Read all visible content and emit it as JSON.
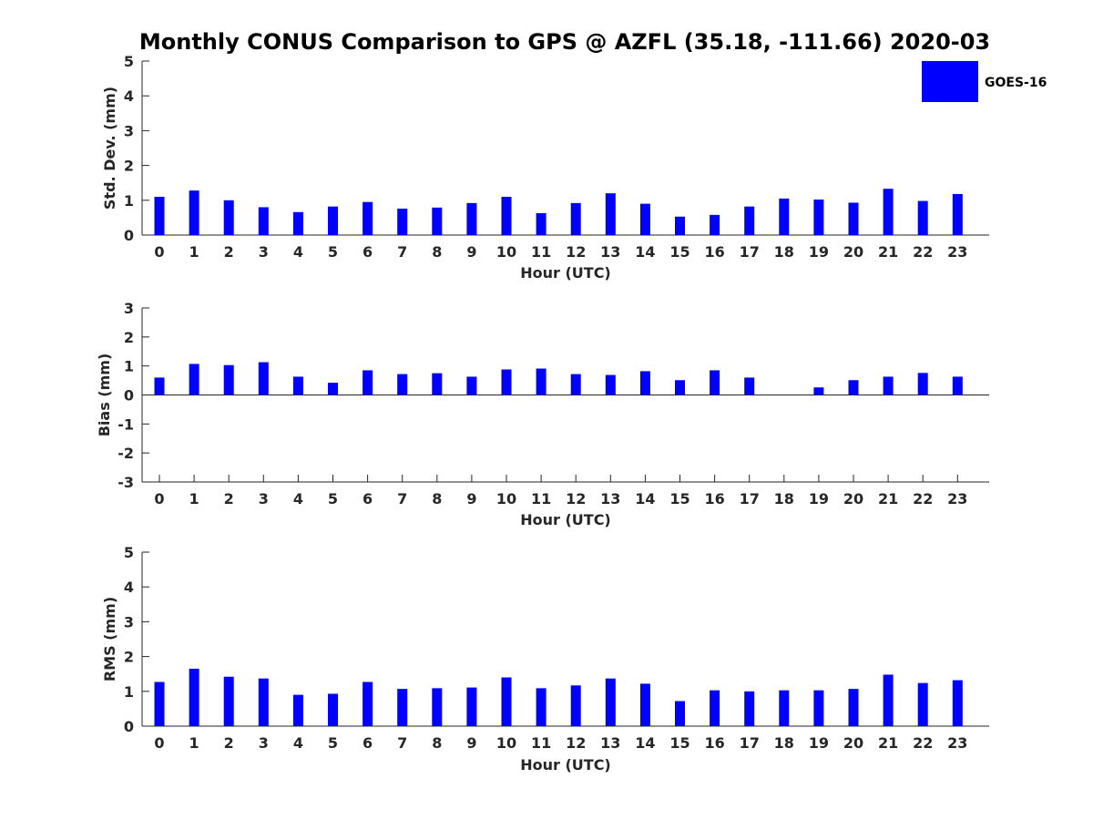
{
  "figure": {
    "title": "Monthly CONUS Comparison to GPS @ AZFL (35.18, -111.66) 2020-03",
    "legend": {
      "label": "GOES-16",
      "color": "#0000ff"
    }
  },
  "chart_data": [
    {
      "type": "bar",
      "title": "Monthly CONUS Comparison to GPS @ AZFL (35.18, -111.66) 2020-03",
      "xlabel": "Hour (UTC)",
      "ylabel": "Std. Dev. (mm)",
      "ylim": [
        0,
        5
      ],
      "yticks": [
        0,
        1,
        2,
        3,
        4,
        5
      ],
      "categories": [
        "0",
        "1",
        "2",
        "3",
        "4",
        "5",
        "6",
        "7",
        "8",
        "9",
        "10",
        "11",
        "12",
        "13",
        "14",
        "15",
        "16",
        "17",
        "18",
        "19",
        "20",
        "21",
        "22",
        "23"
      ],
      "series": [
        {
          "name": "GOES-16",
          "color": "#0000ff",
          "values": [
            1.1,
            1.28,
            1.0,
            0.8,
            0.66,
            0.82,
            0.95,
            0.76,
            0.79,
            0.92,
            1.1,
            0.63,
            0.92,
            1.2,
            0.9,
            0.53,
            0.58,
            0.82,
            1.05,
            1.02,
            0.93,
            1.33,
            0.98,
            1.18
          ]
        }
      ],
      "legend": "top-right",
      "grid": false
    },
    {
      "type": "bar",
      "xlabel": "Hour (UTC)",
      "ylabel": "Bias (mm)",
      "ylim": [
        -3,
        3
      ],
      "yticks": [
        -3,
        -2,
        -1,
        0,
        1,
        2,
        3
      ],
      "categories": [
        "0",
        "1",
        "2",
        "3",
        "4",
        "5",
        "6",
        "7",
        "8",
        "9",
        "10",
        "11",
        "12",
        "13",
        "14",
        "15",
        "16",
        "17",
        "18",
        "19",
        "20",
        "21",
        "22",
        "23"
      ],
      "series": [
        {
          "name": "GOES-16",
          "color": "#0000ff",
          "values": [
            0.6,
            1.07,
            1.03,
            1.13,
            0.63,
            0.42,
            0.85,
            0.72,
            0.75,
            0.63,
            0.88,
            0.91,
            0.72,
            0.69,
            0.82,
            0.51,
            0.85,
            0.6,
            0,
            0.26,
            0.51,
            0.63,
            0.76,
            0.63
          ]
        }
      ],
      "grid": false
    },
    {
      "type": "bar",
      "xlabel": "Hour (UTC)",
      "ylabel": "RMS (mm)",
      "ylim": [
        0,
        5
      ],
      "yticks": [
        0,
        1,
        2,
        3,
        4,
        5
      ],
      "categories": [
        "0",
        "1",
        "2",
        "3",
        "4",
        "5",
        "6",
        "7",
        "8",
        "9",
        "10",
        "11",
        "12",
        "13",
        "14",
        "15",
        "16",
        "17",
        "18",
        "19",
        "20",
        "21",
        "22",
        "23"
      ],
      "series": [
        {
          "name": "GOES-16",
          "color": "#0000ff",
          "values": [
            1.27,
            1.65,
            1.42,
            1.37,
            0.9,
            0.93,
            1.27,
            1.07,
            1.09,
            1.11,
            1.4,
            1.09,
            1.17,
            1.37,
            1.22,
            0.72,
            1.03,
            1.0,
            1.03,
            1.03,
            1.07,
            1.48,
            1.24,
            1.32
          ]
        }
      ],
      "grid": false
    }
  ]
}
